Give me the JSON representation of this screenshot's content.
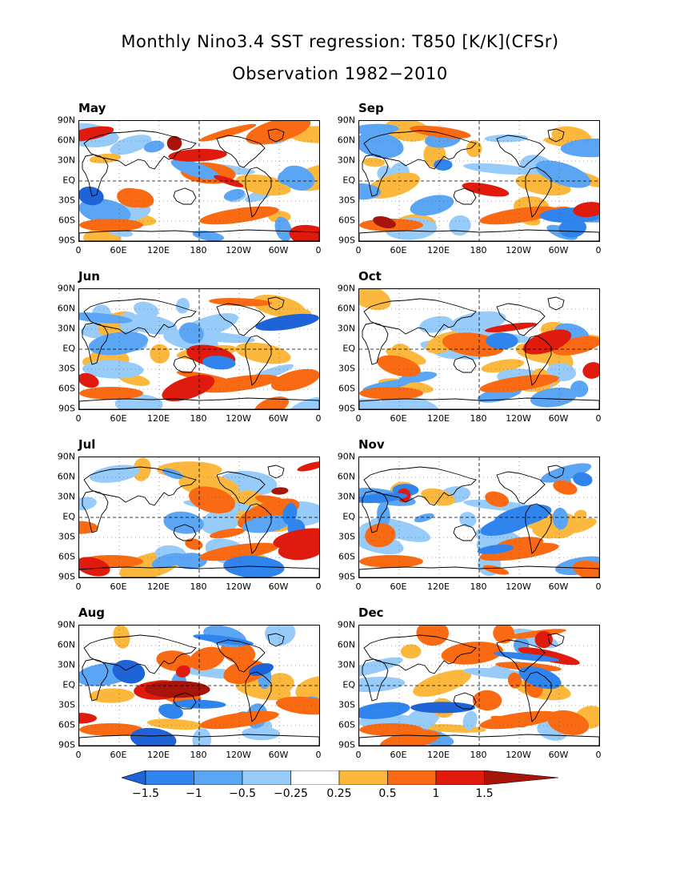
{
  "title": "Monthly Nino3.4 SST regression: T850 [K/K](CFSr)",
  "subtitle": "Observation 1982−2010",
  "lat_labels": [
    "90N",
    "60N",
    "30N",
    "EQ",
    "30S",
    "60S",
    "90S"
  ],
  "lon_labels": [
    "0",
    "60E",
    "120E",
    "180",
    "120W",
    "60W",
    "0"
  ],
  "panels": [
    {
      "month": "May"
    },
    {
      "month": "Sep"
    },
    {
      "month": "Jun"
    },
    {
      "month": "Oct"
    },
    {
      "month": "Jul"
    },
    {
      "month": "Nov"
    },
    {
      "month": "Aug"
    },
    {
      "month": "Dec"
    }
  ],
  "colorbar": {
    "levels": [
      "−1.5",
      "−1",
      "−0.5",
      "−0.25",
      "0.25",
      "0.5",
      "1",
      "1.5"
    ],
    "colors": [
      "#1e64d8",
      "#2f84ee",
      "#5aa5f4",
      "#96cbfa",
      "#ffffff",
      "#fbb83c",
      "#f96a12",
      "#e01a0c",
      "#a8130a"
    ]
  }
}
